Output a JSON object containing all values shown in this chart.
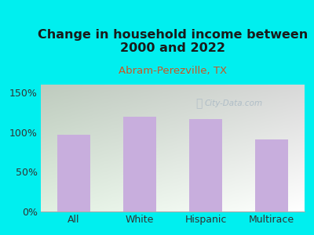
{
  "title": "Change in household income between\n2000 and 2022",
  "subtitle": "Abram-Perezville, TX",
  "categories": [
    "All",
    "White",
    "Hispanic",
    "Multirace"
  ],
  "values": [
    97,
    120,
    117,
    91
  ],
  "bar_color": "#c8aedd",
  "bar_edge_color": "#c8aedd",
  "bg_color": "#00efef",
  "title_color": "#1a1a1a",
  "subtitle_color": "#cc5522",
  "ylabel_ticks": [
    0,
    50,
    100,
    150
  ],
  "ylabel_labels": [
    "0%",
    "50%",
    "100%",
    "150%"
  ],
  "ylim": [
    0,
    160
  ],
  "watermark": "City-Data.com",
  "watermark_color": "#a8b8c4",
  "tick_label_color": "#333333",
  "axis_line_color": "#aaaaaa",
  "title_fontsize": 11.5,
  "subtitle_fontsize": 9.5,
  "tick_fontsize": 9
}
